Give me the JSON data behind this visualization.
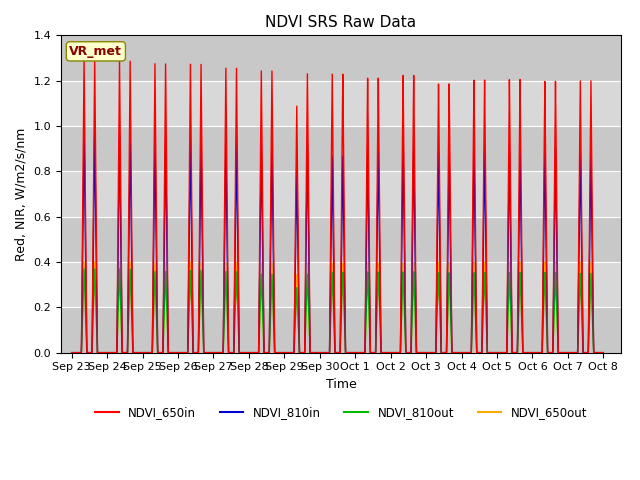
{
  "title": "NDVI SRS Raw Data",
  "ylabel": "Red, NIR, W/m2/s/nm",
  "xlabel": "Time",
  "annotation": "VR_met",
  "ylim": [
    0,
    1.4
  ],
  "yticks": [
    0.0,
    0.2,
    0.4,
    0.6,
    0.8,
    1.0,
    1.2,
    1.4
  ],
  "xtick_labels": [
    "Sep 23",
    "Sep 24",
    "Sep 25",
    "Sep 26",
    "Sep 27",
    "Sep 28",
    "Sep 29",
    "Sep 30",
    "Oct 1",
    "Oct 2",
    "Oct 3",
    "Oct 4",
    "Oct 5",
    "Oct 6",
    "Oct 7",
    "Oct 8"
  ],
  "series": {
    "NDVI_650in": {
      "color": "#ff0000",
      "peaks1": [
        1.3,
        1.29,
        1.28,
        1.28,
        1.265,
        1.255,
        1.1,
        1.245,
        1.225,
        1.235,
        1.195,
        1.21,
        1.21,
        1.2,
        1.2
      ],
      "peaks2": [
        1.3,
        1.29,
        1.28,
        1.28,
        1.265,
        1.255,
        1.245,
        1.245,
        1.225,
        1.235,
        1.195,
        1.21,
        1.21,
        1.2,
        1.2
      ]
    },
    "NDVI_810in": {
      "color": "#0000cc",
      "peaks1": [
        0.975,
        0.965,
        0.945,
        0.945,
        0.93,
        0.93,
        0.83,
        0.88,
        0.91,
        0.92,
        0.89,
        0.9,
        0.9,
        0.9,
        0.9
      ],
      "peaks2": [
        0.975,
        0.965,
        0.945,
        0.945,
        0.93,
        0.93,
        0.93,
        0.88,
        0.91,
        0.92,
        0.89,
        0.9,
        0.9,
        0.9,
        0.9
      ]
    },
    "NDVI_810out": {
      "color": "#00bb00",
      "peaks1": [
        0.37,
        0.37,
        0.36,
        0.365,
        0.36,
        0.35,
        0.29,
        0.36,
        0.36,
        0.36,
        0.355,
        0.355,
        0.355,
        0.355,
        0.35
      ],
      "peaks2": [
        0.37,
        0.37,
        0.36,
        0.365,
        0.36,
        0.35,
        0.35,
        0.36,
        0.36,
        0.36,
        0.355,
        0.355,
        0.355,
        0.355,
        0.35
      ]
    },
    "NDVI_650out": {
      "color": "#ffaa00",
      "peaks1": [
        0.4,
        0.4,
        0.4,
        0.4,
        0.4,
        0.4,
        0.35,
        0.4,
        0.4,
        0.4,
        0.4,
        0.4,
        0.4,
        0.4,
        0.4
      ],
      "peaks2": [
        0.4,
        0.4,
        0.4,
        0.4,
        0.4,
        0.4,
        0.4,
        0.4,
        0.4,
        0.4,
        0.4,
        0.4,
        0.4,
        0.4,
        0.4
      ]
    }
  },
  "background_color": "#ffffff",
  "plot_bg_color": "#d8d8d8",
  "legend_labels": [
    "NDVI_650in",
    "NDVI_810in",
    "NDVI_810out",
    "NDVI_650out"
  ],
  "legend_colors": [
    "#ff0000",
    "#0000cc",
    "#00bb00",
    "#ffaa00"
  ],
  "title_fontsize": 11,
  "label_fontsize": 9,
  "tick_fontsize": 8,
  "linewidth": 1.0
}
